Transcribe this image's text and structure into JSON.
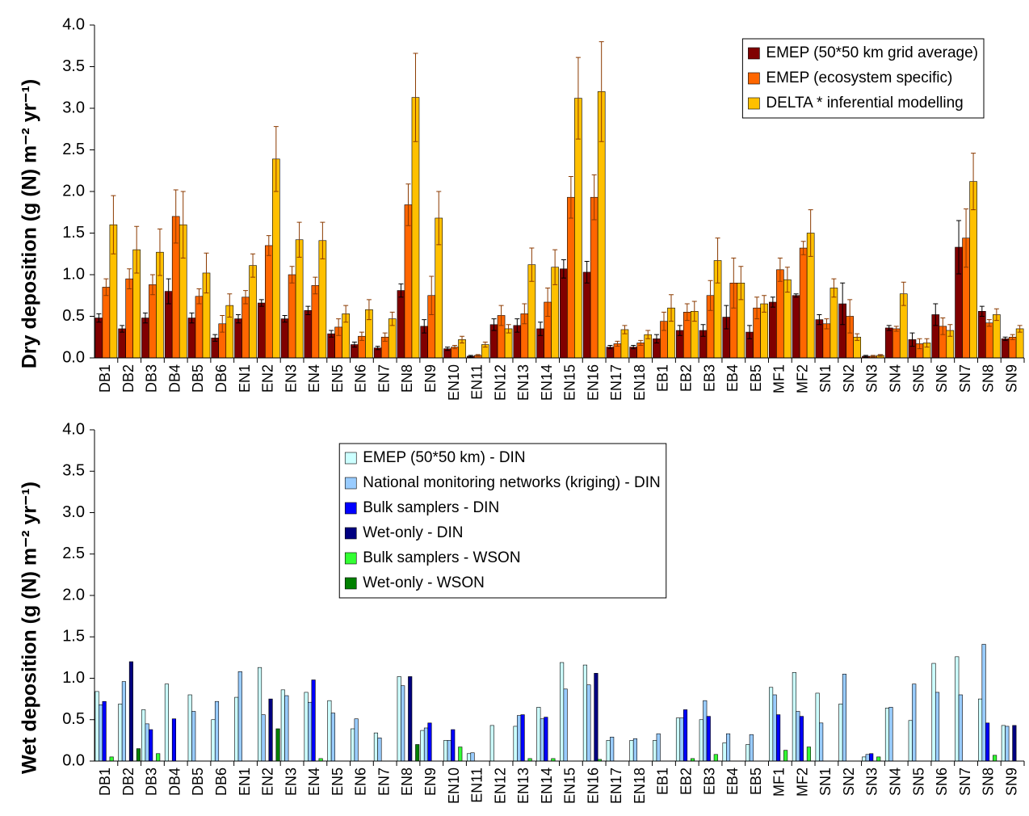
{
  "chart_data": [
    {
      "type": "bar",
      "y_label": "Dry deposition (g (N) m⁻² yr⁻¹)",
      "legend_position": "upper right",
      "categories": [
        "DB1",
        "DB2",
        "DB3",
        "DB4",
        "DB5",
        "DB6",
        "EN1",
        "EN2",
        "EN3",
        "EN4",
        "EN5",
        "EN6",
        "EN7",
        "EN8",
        "EN9",
        "EN10",
        "EN11",
        "EN12",
        "EN13",
        "EN14",
        "EN15",
        "EN16",
        "EN17",
        "EN18",
        "EB1",
        "EB2",
        "EB3",
        "EB4",
        "EB5",
        "MF1",
        "MF2",
        "SN1",
        "SN2",
        "SN3",
        "SN4",
        "SN5",
        "SN6",
        "SN7",
        "SN8",
        "SN9"
      ],
      "ylim": [
        0,
        4
      ],
      "yticks": [
        {
          "value": 0,
          "label": "0.0"
        },
        0.5,
        {
          "value": 1,
          "label": "1.0"
        },
        1.5,
        {
          "value": 2,
          "label": "2.0"
        },
        2.5,
        {
          "value": 3,
          "label": "3.0"
        },
        3.5,
        {
          "value": 4,
          "label": "4.0"
        }
      ],
      "series": [
        {
          "name": "EMEP (50*50 km grid average)",
          "color": "#800000",
          "values": [
            0.48,
            0.35,
            0.48,
            0.8,
            0.48,
            0.24,
            0.47,
            0.66,
            0.47,
            0.57,
            0.29,
            0.16,
            0.12,
            0.81,
            0.38,
            0.11,
            0.02,
            0.4,
            0.39,
            0.35,
            1.07,
            1.03,
            0.13,
            0.13,
            0.23,
            0.33,
            0.33,
            0.49,
            0.31,
            0.67,
            0.75,
            0.46,
            0.65,
            0.02,
            0.36,
            0.22,
            0.52,
            1.33,
            0.56,
            0.23
          ],
          "errors": [
            0.05,
            0.04,
            0.06,
            0.15,
            0.06,
            0.04,
            0.05,
            0.04,
            0.04,
            0.05,
            0.04,
            0.03,
            0.02,
            0.08,
            0.08,
            0.02,
            0.01,
            0.07,
            0.08,
            0.08,
            0.11,
            0.13,
            0.02,
            0.02,
            0.05,
            0.06,
            0.07,
            0.14,
            0.08,
            0.06,
            0.02,
            0.06,
            0.25,
            0.01,
            0.03,
            0.08,
            0.13,
            0.32,
            0.06,
            0.02
          ]
        },
        {
          "name": "EMEP (ecosystem specific)",
          "color": "#ff6600",
          "values": [
            0.85,
            0.95,
            0.88,
            1.7,
            0.74,
            0.41,
            0.73,
            1.35,
            1.0,
            0.87,
            0.37,
            0.26,
            0.25,
            1.84,
            0.75,
            0.13,
            0.03,
            0.51,
            0.53,
            0.67,
            1.93,
            1.93,
            0.17,
            0.18,
            0.44,
            0.55,
            0.75,
            0.9,
            0.6,
            1.06,
            1.32,
            0.41,
            0.5,
            0.02,
            0.35,
            0.17,
            0.38,
            1.44,
            0.42,
            0.25
          ],
          "errors": [
            0.1,
            0.12,
            0.12,
            0.32,
            0.09,
            0.1,
            0.08,
            0.12,
            0.1,
            0.1,
            0.1,
            0.05,
            0.05,
            0.25,
            0.23,
            0.02,
            0.01,
            0.12,
            0.12,
            0.17,
            0.25,
            0.27,
            0.03,
            0.03,
            0.11,
            0.1,
            0.18,
            0.3,
            0.13,
            0.14,
            0.08,
            0.06,
            0.2,
            0.01,
            0.03,
            0.06,
            0.1,
            0.35,
            0.04,
            0.03
          ]
        },
        {
          "name": "DELTA * inferential modelling",
          "color": "#ffc000",
          "values": [
            1.6,
            1.3,
            1.27,
            1.6,
            1.02,
            0.63,
            1.11,
            2.39,
            1.42,
            1.41,
            0.53,
            0.58,
            0.47,
            3.13,
            1.68,
            0.22,
            0.16,
            0.35,
            1.12,
            1.09,
            3.12,
            3.2,
            0.34,
            0.28,
            0.6,
            0.56,
            1.17,
            0.9,
            0.65,
            0.94,
            1.5,
            0.84,
            0.25,
            0.03,
            0.77,
            0.18,
            0.33,
            2.12,
            0.52,
            0.35
          ],
          "errors": [
            0.35,
            0.28,
            0.28,
            0.4,
            0.24,
            0.14,
            0.14,
            0.39,
            0.21,
            0.22,
            0.1,
            0.12,
            0.08,
            0.53,
            0.32,
            0.04,
            0.03,
            0.05,
            0.2,
            0.21,
            0.49,
            0.6,
            0.05,
            0.05,
            0.16,
            0.12,
            0.27,
            0.2,
            0.1,
            0.15,
            0.28,
            0.11,
            0.04,
            0.01,
            0.14,
            0.05,
            0.07,
            0.34,
            0.07,
            0.04
          ]
        }
      ]
    },
    {
      "type": "bar",
      "y_label": "Wet deposition (g (N) m⁻² yr⁻¹)",
      "legend_position": "upper center",
      "categories": [
        "DB1",
        "DB2",
        "DB3",
        "DB4",
        "DB5",
        "DB6",
        "EN1",
        "EN2",
        "EN3",
        "EN4",
        "EN5",
        "EN6",
        "EN7",
        "EN8",
        "EN9",
        "EN10",
        "EN11",
        "EN12",
        "EN13",
        "EN14",
        "EN15",
        "EN16",
        "EN17",
        "EN18",
        "EB1",
        "EB2",
        "EB3",
        "EB4",
        "EB5",
        "MF1",
        "MF2",
        "SN1",
        "SN2",
        "SN3",
        "SN4",
        "SN5",
        "SN6",
        "SN7",
        "SN8",
        "SN9"
      ],
      "ylim": [
        0,
        4
      ],
      "yticks": [
        {
          "value": 0,
          "label": "0.0"
        },
        0.5,
        {
          "value": 1,
          "label": "1.0"
        },
        1.5,
        {
          "value": 2,
          "label": "2.0"
        },
        2.5,
        {
          "value": 3,
          "label": "3.0"
        },
        3.5,
        {
          "value": 4,
          "label": "4.0"
        }
      ],
      "series": [
        {
          "name": "EMEP (50*50 km) - DIN",
          "color": "#ccffff",
          "values": [
            0.84,
            0.69,
            0.62,
            0.93,
            0.8,
            0.5,
            0.77,
            1.13,
            0.86,
            0.83,
            0.73,
            0.39,
            0.34,
            1.02,
            0.37,
            0.25,
            0.09,
            0.43,
            0.42,
            0.65,
            1.19,
            1.16,
            0.25,
            0.25,
            0.25,
            0.52,
            0.5,
            0.22,
            0.2,
            0.89,
            1.07,
            0.82,
            0.69,
            0.05,
            0.64,
            0.49,
            1.18,
            1.26,
            0.75,
            0.43
          ]
        },
        {
          "name": "National monitoring networks (kriging) - DIN",
          "color": "#99ccff",
          "values": [
            0.68,
            0.96,
            0.45,
            null,
            0.6,
            0.72,
            1.08,
            0.56,
            0.79,
            0.71,
            0.58,
            0.51,
            0.28,
            0.91,
            0.4,
            0.25,
            0.1,
            null,
            0.55,
            0.51,
            0.87,
            0.92,
            0.29,
            0.27,
            0.33,
            0.52,
            0.73,
            0.33,
            0.32,
            0.8,
            0.6,
            0.46,
            1.05,
            0.08,
            0.65,
            0.93,
            0.83,
            0.8,
            1.41,
            0.42
          ]
        },
        {
          "name": "Bulk samplers - DIN",
          "color": "#0000ff",
          "values": [
            0.72,
            null,
            0.38,
            0.51,
            null,
            null,
            null,
            null,
            null,
            0.98,
            null,
            null,
            null,
            null,
            0.46,
            0.38,
            null,
            null,
            0.56,
            0.53,
            null,
            null,
            null,
            null,
            null,
            0.62,
            0.54,
            null,
            null,
            0.56,
            0.54,
            null,
            null,
            0.09,
            null,
            null,
            null,
            null,
            0.46,
            null
          ]
        },
        {
          "name": "Wet-only - DIN",
          "color": "#000080",
          "values": [
            null,
            1.2,
            null,
            null,
            null,
            null,
            null,
            0.75,
            null,
            null,
            null,
            null,
            null,
            1.02,
            null,
            null,
            null,
            null,
            null,
            null,
            null,
            1.06,
            null,
            null,
            null,
            null,
            null,
            null,
            null,
            null,
            null,
            null,
            null,
            null,
            null,
            null,
            null,
            null,
            null,
            0.43
          ]
        },
        {
          "name": "Bulk samplers - WSON",
          "color": "#33ff33",
          "values": [
            0.05,
            null,
            0.09,
            null,
            null,
            null,
            null,
            null,
            null,
            0.03,
            null,
            null,
            null,
            null,
            null,
            0.17,
            null,
            null,
            0.03,
            0.03,
            null,
            0.02,
            null,
            null,
            null,
            0.03,
            0.08,
            null,
            null,
            0.13,
            0.17,
            null,
            null,
            0.05,
            null,
            null,
            null,
            null,
            0.07,
            null
          ]
        },
        {
          "name": "Wet-only - WSON",
          "color": "#008000",
          "values": [
            null,
            0.15,
            null,
            null,
            null,
            null,
            null,
            0.39,
            null,
            null,
            null,
            null,
            null,
            0.2,
            null,
            null,
            null,
            null,
            null,
            null,
            null,
            null,
            null,
            null,
            null,
            null,
            null,
            null,
            null,
            null,
            null,
            null,
            null,
            null,
            null,
            null,
            null,
            null,
            null,
            null
          ]
        }
      ]
    }
  ]
}
